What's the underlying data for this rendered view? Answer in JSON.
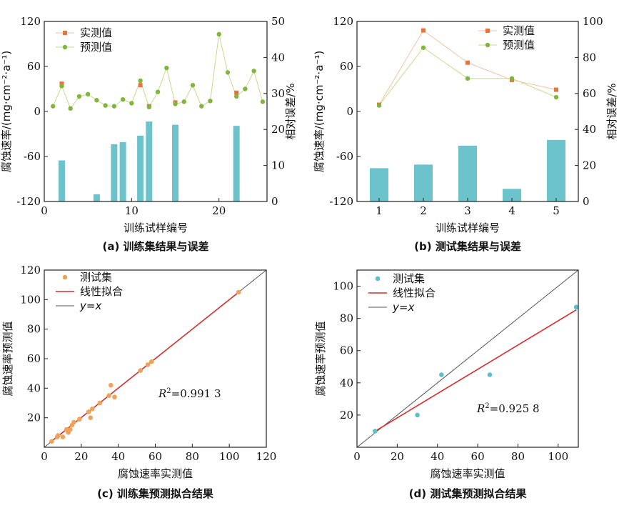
{
  "colors": {
    "measured": "#e8743b",
    "predicted": "#7fb63c",
    "bar": "#6cc3cc",
    "train_point": "#f0a25a",
    "test_point": "#5bbfcc",
    "fit_line": "#d62d2d",
    "identity_line": "#555555"
  },
  "chart_data": [
    {
      "type": "bar",
      "caption": "(a) 训练集结果与误差",
      "xlabel": "训练试样编号",
      "ylabel": "腐蚀速率/(mg·cm⁻²·a⁻¹)",
      "y2label": "相对误差/%",
      "xlim": [
        0,
        25.5
      ],
      "ylim": [
        -120,
        120
      ],
      "y2lim": [
        0,
        50
      ],
      "xticks": [
        0,
        10,
        20
      ],
      "yticks": [
        -120,
        -60,
        0,
        60,
        120
      ],
      "y2ticks": [
        0,
        10,
        20,
        30,
        40,
        50
      ],
      "legend": {
        "position": "top-left",
        "entries": [
          "实测值",
          "预测值"
        ]
      },
      "series": [
        {
          "name": "实测值",
          "x": [
            2,
            11,
            12,
            15,
            22
          ],
          "values": [
            37,
            35,
            7,
            12,
            25
          ]
        },
        {
          "name": "预测值",
          "x": [
            1,
            2,
            3,
            4,
            5,
            6,
            7,
            8,
            9,
            10,
            11,
            12,
            13,
            14,
            15,
            16,
            17,
            18,
            19,
            20,
            21,
            22,
            23,
            24,
            25
          ],
          "values": [
            7,
            34,
            4,
            20,
            23,
            15,
            8,
            7,
            16,
            11,
            41,
            6,
            26,
            58,
            10,
            13,
            35,
            7,
            14,
            103,
            52,
            20,
            30,
            54,
            13
          ]
        },
        {
          "name": "相对误差",
          "x": [
            2,
            6,
            8,
            9,
            11,
            12,
            15,
            22
          ],
          "values": [
            11.4,
            2,
            15.9,
            16.5,
            18.3,
            22.2,
            21.3,
            21
          ]
        }
      ]
    },
    {
      "type": "bar",
      "caption": "(b) 测试集结果与误差",
      "xlabel": "训练试样编号",
      "ylabel": "腐蚀速率/(mg·cm⁻²·a⁻¹)",
      "y2label": "相对误差/%",
      "xlim": [
        0.5,
        5.5
      ],
      "ylim": [
        -120,
        120
      ],
      "y2lim": [
        0,
        100
      ],
      "xticks": [
        1,
        2,
        3,
        4,
        5
      ],
      "yticks": [
        -120,
        -60,
        0,
        60,
        120
      ],
      "y2ticks": [
        0,
        20,
        40,
        60,
        80,
        100
      ],
      "legend": {
        "position": "top-right",
        "entries": [
          "实测值",
          "预测值"
        ]
      },
      "series": [
        {
          "name": "实测值",
          "x": [
            1,
            2,
            3,
            4,
            5
          ],
          "values": [
            9,
            108,
            65,
            42,
            29
          ]
        },
        {
          "name": "预测值",
          "x": [
            1,
            2,
            3,
            4,
            5
          ],
          "values": [
            8,
            85,
            44,
            44,
            19
          ]
        },
        {
          "name": "相对误差",
          "x": [
            1,
            2,
            3,
            4,
            5
          ],
          "values": [
            18.5,
            20.5,
            31,
            7,
            34.2
          ]
        }
      ]
    },
    {
      "type": "scatter",
      "caption": "(c) 训练集预测拟合结果",
      "xlabel": "腐蚀速率实测值",
      "ylabel": "腐蚀速率预测值",
      "xlim": [
        0,
        120
      ],
      "ylim": [
        0,
        120
      ],
      "xticks": [
        0,
        20,
        40,
        60,
        80,
        100,
        120
      ],
      "yticks": [
        20,
        40,
        60,
        80,
        100,
        120
      ],
      "legend": {
        "position": "top-left",
        "entries": [
          "测试集",
          "线性拟合",
          "y=x"
        ]
      },
      "annotation": {
        "r2_prefix": "R",
        "r2_sup": "2",
        "r2_value": "=0.991 3"
      },
      "x": [
        4,
        7,
        7.5,
        10,
        12,
        13,
        14,
        15,
        16,
        19,
        24,
        25,
        26,
        30,
        35,
        36,
        38,
        52,
        56,
        58,
        105
      ],
      "y": [
        4,
        7,
        8,
        7,
        12,
        10,
        12,
        15,
        17,
        19,
        24,
        20,
        26,
        30,
        35,
        42,
        34,
        52,
        56,
        58,
        105
      ],
      "fit": {
        "slope": 0.998,
        "intercept": 0.15
      }
    },
    {
      "type": "scatter",
      "caption": "(d) 测试集预测拟合结果",
      "xlabel": "腐蚀速率实测值",
      "ylabel": "腐蚀速率预测值",
      "xlim": [
        0,
        110
      ],
      "ylim": [
        0,
        110
      ],
      "xticks": [
        0,
        20,
        40,
        60,
        80,
        100
      ],
      "yticks": [
        20,
        40,
        60,
        80,
        100
      ],
      "legend": {
        "position": "top-left",
        "entries": [
          "测试集",
          "线性拟合",
          "y=x"
        ]
      },
      "annotation": {
        "r2_prefix": "R",
        "r2_sup": "2",
        "r2_value": "=0.925 8"
      },
      "x": [
        9,
        30,
        42,
        66,
        109
      ],
      "y": [
        10,
        20,
        45,
        45,
        87
      ],
      "fit": {
        "slope": 0.753,
        "intercept": 3.2
      }
    }
  ]
}
